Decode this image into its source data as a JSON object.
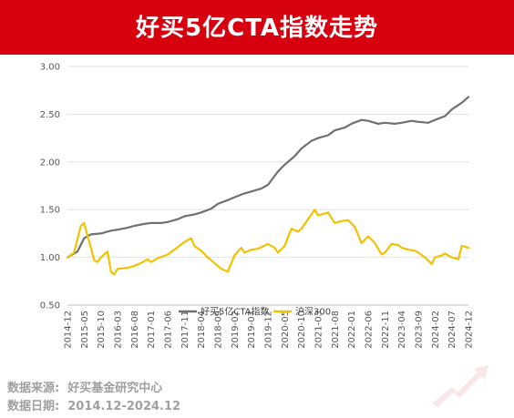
{
  "header": {
    "title": "好买5亿CTA指数走势"
  },
  "footer": {
    "source_label": "数据来源:",
    "source_value": "好买基金研究中心",
    "date_label": "数据日期:",
    "date_value": "2014.12-2024.12"
  },
  "colors": {
    "banner": "#d7000f",
    "cta_line": "#707070",
    "csi300_line": "#f2c100",
    "grid": "#e2e2e2"
  },
  "chart_data": {
    "type": "line",
    "x_ticks": [
      "2014-12",
      "2015-05",
      "2015-10",
      "2016-03",
      "2016-08",
      "2017-01",
      "2017-06",
      "2017-11",
      "2018-04",
      "2018-09",
      "2019-02",
      "2019-07",
      "2019-12",
      "2020-05",
      "2020-10",
      "2021-03",
      "2021-08",
      "2022-01",
      "2022-06",
      "2022-11",
      "2023-04",
      "2023-09",
      "2024-02",
      "2024-07",
      "2024-12"
    ],
    "ylim": [
      0.5,
      3.0
    ],
    "y_ticks": [
      "0.50",
      "1.00",
      "1.50",
      "2.00",
      "2.50",
      "3.00"
    ],
    "grid": "horizontal",
    "legend_position": "bottom",
    "series": [
      {
        "name": "好买5亿CTA指数",
        "color": "#707070",
        "points": [
          [
            "2014-12",
            1.0
          ],
          [
            "2015-03",
            1.06
          ],
          [
            "2015-05",
            1.2
          ],
          [
            "2015-07",
            1.24
          ],
          [
            "2015-10",
            1.25
          ],
          [
            "2016-01",
            1.28
          ],
          [
            "2016-03",
            1.29
          ],
          [
            "2016-06",
            1.31
          ],
          [
            "2016-08",
            1.33
          ],
          [
            "2016-11",
            1.35
          ],
          [
            "2017-01",
            1.36
          ],
          [
            "2017-04",
            1.36
          ],
          [
            "2017-06",
            1.37
          ],
          [
            "2017-09",
            1.4
          ],
          [
            "2017-11",
            1.43
          ],
          [
            "2018-02",
            1.45
          ],
          [
            "2018-04",
            1.47
          ],
          [
            "2018-07",
            1.51
          ],
          [
            "2018-09",
            1.56
          ],
          [
            "2018-12",
            1.6
          ],
          [
            "2019-02",
            1.63
          ],
          [
            "2019-05",
            1.67
          ],
          [
            "2019-07",
            1.69
          ],
          [
            "2019-10",
            1.72
          ],
          [
            "2019-12",
            1.76
          ],
          [
            "2020-03",
            1.9
          ],
          [
            "2020-05",
            1.97
          ],
          [
            "2020-08",
            2.06
          ],
          [
            "2020-10",
            2.14
          ],
          [
            "2021-01",
            2.22
          ],
          [
            "2021-03",
            2.25
          ],
          [
            "2021-06",
            2.28
          ],
          [
            "2021-08",
            2.33
          ],
          [
            "2021-11",
            2.36
          ],
          [
            "2022-01",
            2.4
          ],
          [
            "2022-04",
            2.44
          ],
          [
            "2022-06",
            2.43
          ],
          [
            "2022-09",
            2.4
          ],
          [
            "2022-11",
            2.41
          ],
          [
            "2023-02",
            2.4
          ],
          [
            "2023-04",
            2.41
          ],
          [
            "2023-07",
            2.43
          ],
          [
            "2023-09",
            2.42
          ],
          [
            "2023-12",
            2.41
          ],
          [
            "2024-02",
            2.44
          ],
          [
            "2024-05",
            2.48
          ],
          [
            "2024-07",
            2.55
          ],
          [
            "2024-10",
            2.62
          ],
          [
            "2024-12",
            2.68
          ]
        ]
      },
      {
        "name": "沪深300",
        "color": "#f2c100",
        "points": [
          [
            "2014-12",
            1.0
          ],
          [
            "2015-02",
            1.05
          ],
          [
            "2015-04",
            1.33
          ],
          [
            "2015-05",
            1.36
          ],
          [
            "2015-07",
            1.1
          ],
          [
            "2015-08",
            0.97
          ],
          [
            "2015-09",
            0.95
          ],
          [
            "2015-10",
            1.0
          ],
          [
            "2015-12",
            1.06
          ],
          [
            "2016-01",
            0.85
          ],
          [
            "2016-02",
            0.82
          ],
          [
            "2016-03",
            0.88
          ],
          [
            "2016-06",
            0.89
          ],
          [
            "2016-08",
            0.91
          ],
          [
            "2016-10",
            0.94
          ],
          [
            "2016-12",
            0.98
          ],
          [
            "2017-01",
            0.95
          ],
          [
            "2017-03",
            0.99
          ],
          [
            "2017-06",
            1.03
          ],
          [
            "2017-08",
            1.08
          ],
          [
            "2017-11",
            1.16
          ],
          [
            "2018-01",
            1.2
          ],
          [
            "2018-02",
            1.12
          ],
          [
            "2018-04",
            1.07
          ],
          [
            "2018-06",
            1.0
          ],
          [
            "2018-08",
            0.94
          ],
          [
            "2018-10",
            0.88
          ],
          [
            "2018-12",
            0.85
          ],
          [
            "2019-02",
            1.02
          ],
          [
            "2019-04",
            1.1
          ],
          [
            "2019-05",
            1.05
          ],
          [
            "2019-07",
            1.08
          ],
          [
            "2019-09",
            1.09
          ],
          [
            "2019-12",
            1.14
          ],
          [
            "2020-02",
            1.1
          ],
          [
            "2020-03",
            1.05
          ],
          [
            "2020-05",
            1.12
          ],
          [
            "2020-07",
            1.3
          ],
          [
            "2020-09",
            1.27
          ],
          [
            "2020-10",
            1.3
          ],
          [
            "2020-12",
            1.4
          ],
          [
            "2021-02",
            1.5
          ],
          [
            "2021-03",
            1.44
          ],
          [
            "2021-05",
            1.46
          ],
          [
            "2021-06",
            1.47
          ],
          [
            "2021-08",
            1.36
          ],
          [
            "2021-10",
            1.38
          ],
          [
            "2021-12",
            1.39
          ],
          [
            "2022-02",
            1.32
          ],
          [
            "2022-04",
            1.15
          ],
          [
            "2022-06",
            1.22
          ],
          [
            "2022-08",
            1.15
          ],
          [
            "2022-10",
            1.03
          ],
          [
            "2022-11",
            1.05
          ],
          [
            "2023-01",
            1.14
          ],
          [
            "2023-03",
            1.13
          ],
          [
            "2023-04",
            1.1
          ],
          [
            "2023-06",
            1.08
          ],
          [
            "2023-08",
            1.07
          ],
          [
            "2023-09",
            1.05
          ],
          [
            "2023-11",
            1.0
          ],
          [
            "2024-01",
            0.93
          ],
          [
            "2024-02",
            1.0
          ],
          [
            "2024-04",
            1.02
          ],
          [
            "2024-05",
            1.04
          ],
          [
            "2024-07",
            1.0
          ],
          [
            "2024-09",
            0.98
          ],
          [
            "2024-10",
            1.12
          ],
          [
            "2024-12",
            1.1
          ]
        ]
      }
    ]
  }
}
